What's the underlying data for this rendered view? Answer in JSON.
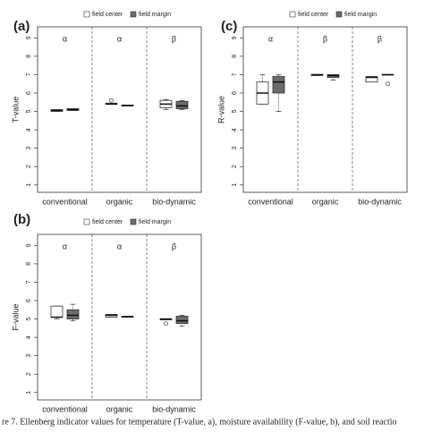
{
  "caption": "re 7. Ellenberg indicator values for temperature (T-value, a), moisture availability (F-value, b), and soil reactio",
  "chart_data": [
    {
      "type": "box",
      "panel_label": "(a)",
      "ylabel": "T-value",
      "categories": [
        "conventional",
        "organic",
        "bio-dynamic"
      ],
      "group_letters": [
        "α",
        "α",
        "β"
      ],
      "ylim": [
        0.6,
        9.6
      ],
      "yticks": [
        1,
        2,
        3,
        4,
        5,
        6,
        7,
        8,
        9
      ],
      "series": [
        {
          "name": "field center",
          "color": "#ffffff",
          "min": [
            5.0,
            5.4,
            5.1
          ],
          "q1": [
            5.0,
            5.4,
            5.2
          ],
          "median": [
            5.05,
            5.4,
            5.4
          ],
          "q3": [
            5.1,
            5.45,
            5.6
          ],
          "max": [
            5.1,
            5.45,
            5.65
          ],
          "outliers": [
            [],
            [
              5.6
            ],
            []
          ]
        },
        {
          "name": "field margin",
          "color": "#6b6b6b",
          "min": [
            5.05,
            5.3,
            5.1
          ],
          "q1": [
            5.05,
            5.3,
            5.15
          ],
          "median": [
            5.1,
            5.32,
            5.3
          ],
          "q3": [
            5.15,
            5.35,
            5.55
          ],
          "max": [
            5.15,
            5.35,
            5.6
          ],
          "outliers": [
            [],
            [],
            []
          ]
        }
      ]
    },
    {
      "type": "box",
      "panel_label": "(c)",
      "ylabel": "R-value",
      "categories": [
        "conventional",
        "organic",
        "bio-dynamic"
      ],
      "group_letters": [
        "α",
        "β",
        "β"
      ],
      "ylim": [
        0.6,
        9.6
      ],
      "yticks": [
        1,
        2,
        3,
        4,
        5,
        6,
        7,
        8,
        9
      ],
      "series": [
        {
          "name": "field center",
          "color": "#ffffff",
          "min": [
            5.4,
            6.95,
            6.6
          ],
          "q1": [
            5.4,
            6.95,
            6.6
          ],
          "median": [
            6.0,
            7.0,
            6.85
          ],
          "q3": [
            6.6,
            7.0,
            6.9
          ],
          "max": [
            7.0,
            7.0,
            6.9
          ],
          "outliers": [
            [],
            [],
            []
          ]
        },
        {
          "name": "field margin",
          "color": "#6b6b6b",
          "min": [
            5.0,
            6.7,
            7.0
          ],
          "q1": [
            6.0,
            6.85,
            7.0
          ],
          "median": [
            6.6,
            6.95,
            7.0
          ],
          "q3": [
            6.9,
            7.0,
            7.0
          ],
          "max": [
            7.0,
            7.0,
            7.0
          ],
          "outliers": [
            [],
            [],
            [
              6.5
            ]
          ]
        }
      ]
    },
    {
      "type": "box",
      "panel_label": "(b)",
      "ylabel": "F-value",
      "categories": [
        "conventional",
        "organic",
        "bio-dynamic"
      ],
      "group_letters": [
        "α",
        "α",
        "β"
      ],
      "ylim": [
        0.6,
        9.6
      ],
      "yticks": [
        1,
        2,
        3,
        4,
        5,
        6,
        7,
        8,
        9
      ],
      "series": [
        {
          "name": "field center",
          "color": "#ffffff",
          "min": [
            5.0,
            5.1,
            4.95
          ],
          "q1": [
            5.1,
            5.1,
            4.95
          ],
          "median": [
            5.1,
            5.2,
            5.0
          ],
          "q3": [
            5.7,
            5.25,
            5.0
          ],
          "max": [
            5.7,
            5.25,
            5.0
          ],
          "outliers": [
            [],
            [],
            [
              4.75
            ]
          ]
        },
        {
          "name": "field margin",
          "color": "#6b6b6b",
          "min": [
            4.9,
            5.1,
            4.6
          ],
          "q1": [
            5.0,
            5.1,
            4.75
          ],
          "median": [
            5.2,
            5.12,
            4.9
          ],
          "q3": [
            5.5,
            5.15,
            5.15
          ],
          "max": [
            5.8,
            5.15,
            5.2
          ],
          "outliers": [
            [],
            [],
            []
          ]
        }
      ]
    }
  ]
}
